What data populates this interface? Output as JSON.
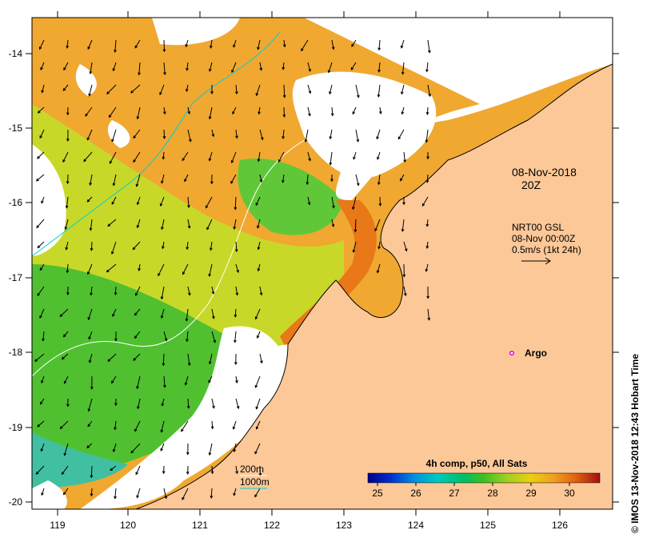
{
  "map": {
    "x_ticks": [
      "119",
      "120",
      "121",
      "122",
      "123",
      "124",
      "125",
      "126"
    ],
    "y_ticks": [
      "-14",
      "-15",
      "-16",
      "-17",
      "-18",
      "-19",
      "-20"
    ],
    "land_color": "#fcc898",
    "cloud_color": "#ffffff"
  },
  "annotations": {
    "date": "08-Nov-2018",
    "time": "20Z",
    "current_source": "NRT00 GSL",
    "current_time": "08-Nov 00:00Z",
    "current_scale": "0.5m/s (1kt 24h)",
    "argo_label": "Argo",
    "isobath_200": "200m",
    "isobath_1000": "1000m"
  },
  "colorbar": {
    "title": "4h comp, p50, All Sats",
    "ticks": [
      "25",
      "26",
      "27",
      "28",
      "29",
      "30"
    ],
    "colors": [
      "#00008b",
      "#0030d0",
      "#0090e0",
      "#00c8c0",
      "#00c060",
      "#40c020",
      "#a0d020",
      "#e8d010",
      "#f0a020",
      "#e06010",
      "#a01010"
    ]
  },
  "credit": "© IMOS 13-Nov-2018 12:43 Hobart Time"
}
